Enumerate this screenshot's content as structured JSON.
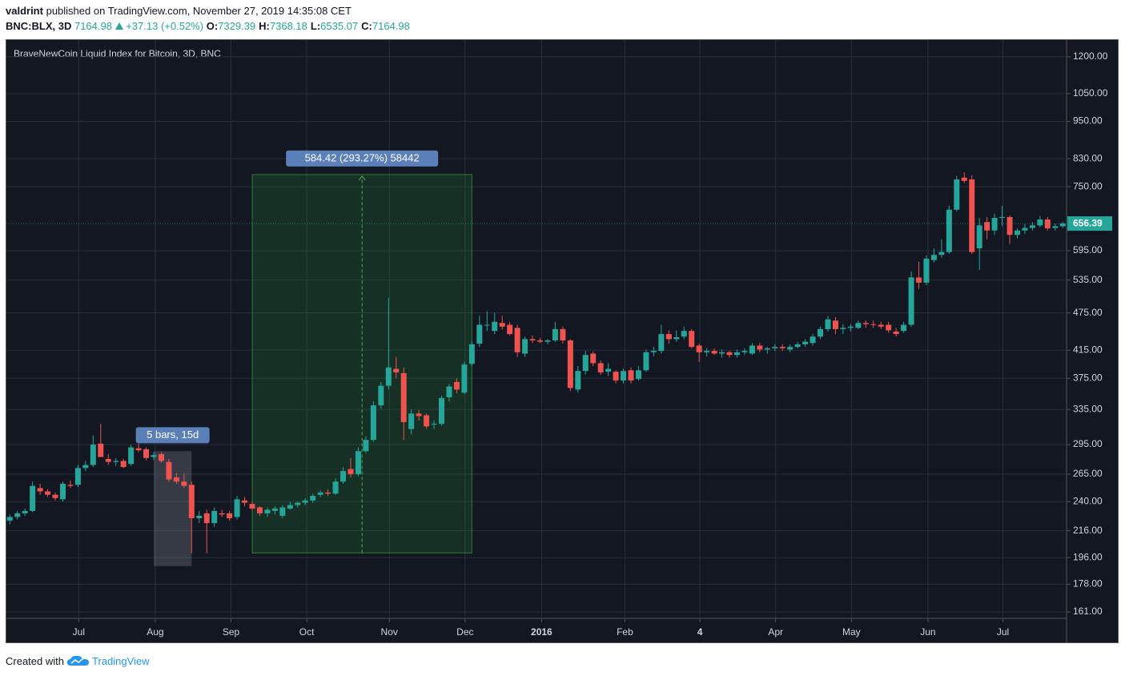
{
  "header": {
    "author": "valdrint",
    "published": "published on TradingView.com, November 27, 2019 14:35:08 CET",
    "symbol": "BNC:BLX, 3D",
    "price": "7164.98",
    "change": "+37.13 (+0.52%)",
    "ohlc": [
      {
        "label": "O:",
        "value": "7329.39"
      },
      {
        "label": "H:",
        "value": "7368.18"
      },
      {
        "label": "L:",
        "value": "6535.07"
      },
      {
        "label": "C:",
        "value": "7164.98"
      }
    ]
  },
  "footer": {
    "text": "Created with",
    "brand": "TradingView"
  },
  "chart_data": {
    "type": "candlestick",
    "title": "BraveNewCoin Liquid Index for Bitcoin, 3D, BNC",
    "log_scale": true,
    "grid": true,
    "up_color": "#26a69a",
    "down_color": "#ef5350",
    "xlim": [
      -0.45,
      139.5
    ],
    "ylim": [
      157.3,
      1275
    ],
    "xticks": [
      {
        "value": 9.1,
        "label": "Jul"
      },
      {
        "value": 19.2,
        "label": "Aug"
      },
      {
        "value": 29.2,
        "label": "Sep"
      },
      {
        "value": 39.2,
        "label": "Oct"
      },
      {
        "value": 50.1,
        "label": "Nov"
      },
      {
        "value": 60.1,
        "label": "Dec"
      },
      {
        "value": 70.2,
        "label": "2016"
      },
      {
        "value": 81.2,
        "label": "Feb"
      },
      {
        "value": 91.1,
        "label": "4"
      },
      {
        "value": 101.1,
        "label": "Apr"
      },
      {
        "value": 111.1,
        "label": "May"
      },
      {
        "value": 121.2,
        "label": "Jun"
      },
      {
        "value": 131.1,
        "label": "Jul"
      }
    ],
    "yticks": [
      {
        "value": 1200,
        "label": "1200.00"
      },
      {
        "value": 1050,
        "label": "1050.00"
      },
      {
        "value": 950,
        "label": "950.00"
      },
      {
        "value": 830,
        "label": "830.00"
      },
      {
        "value": 750,
        "label": "750.00"
      },
      {
        "value": 595,
        "label": "595.00"
      },
      {
        "value": 535,
        "label": "535.00"
      },
      {
        "value": 475,
        "label": "475.00"
      },
      {
        "value": 415,
        "label": "415.00"
      },
      {
        "value": 375,
        "label": "375.00"
      },
      {
        "value": 335,
        "label": "335.00"
      },
      {
        "value": 295,
        "label": "295.00"
      },
      {
        "value": 265,
        "label": "265.00"
      },
      {
        "value": 240,
        "label": "240.00"
      },
      {
        "value": 216,
        "label": "216.00"
      },
      {
        "value": 196,
        "label": "196.00"
      },
      {
        "value": 178,
        "label": "178.00"
      },
      {
        "value": 161,
        "label": "161.00"
      }
    ],
    "last_price": 656.39,
    "open": [
      224,
      227,
      230,
      232,
      252,
      249,
      246,
      242,
      255,
      255,
      271,
      274,
      296,
      280,
      277,
      278,
      275,
      291,
      290,
      282,
      285,
      277,
      262,
      258,
      255,
      226,
      230,
      222,
      230,
      230,
      227,
      241,
      238,
      235,
      230,
      232,
      228,
      234,
      237,
      239,
      241,
      246,
      248,
      247,
      258,
      270,
      265,
      288,
      300,
      340,
      365,
      388,
      382,
      312,
      330,
      328,
      317,
      318,
      350,
      370,
      356,
      395,
      425,
      455,
      445,
      458,
      455,
      450,
      410,
      432,
      430,
      428,
      430,
      448,
      430,
      360,
      385,
      410,
      396,
      384,
      384,
      372,
      386,
      374,
      386,
      412,
      414,
      440,
      432,
      436,
      445,
      422,
      412,
      414,
      410,
      412,
      408,
      412,
      410,
      422,
      416,
      418,
      420,
      416,
      420,
      424,
      426,
      436,
      448,
      462,
      448,
      450,
      450,
      458,
      456,
      455,
      455,
      444,
      445,
      455,
      540,
      530,
      575,
      586,
      592,
      690,
      775,
      770,
      600,
      660,
      640,
      670,
      672,
      630,
      640,
      646,
      652,
      666,
      646,
      650
    ],
    "high": [
      229,
      232,
      234,
      258,
      256,
      251,
      248,
      258,
      259,
      274,
      278,
      305,
      318,
      285,
      281,
      280,
      295,
      296,
      292,
      287,
      287,
      280,
      266,
      266,
      258,
      232,
      233,
      235,
      233,
      232,
      245,
      244,
      240,
      236,
      235,
      236,
      237,
      240,
      240,
      243,
      247,
      250,
      251,
      261,
      272,
      281,
      292,
      304,
      345,
      370,
      502,
      405,
      390,
      335,
      334,
      330,
      322,
      352,
      367,
      375,
      398,
      428,
      470,
      478,
      475,
      470,
      460,
      455,
      436,
      438,
      434,
      432,
      460,
      452,
      432,
      392,
      414,
      413,
      400,
      396,
      386,
      388,
      390,
      392,
      416,
      420,
      455,
      446,
      446,
      452,
      448,
      425,
      418,
      418,
      416,
      414,
      416,
      418,
      426,
      426,
      420,
      424,
      424,
      424,
      428,
      432,
      440,
      452,
      470,
      468,
      456,
      456,
      462,
      462,
      462,
      460,
      460,
      450,
      460,
      552,
      572,
      585,
      600,
      620,
      700,
      780,
      790,
      782,
      670,
      672,
      680,
      700,
      676,
      645,
      655,
      660,
      675,
      672,
      656,
      660
    ],
    "low": [
      221,
      225,
      228,
      231,
      246,
      244,
      241,
      240,
      252,
      253,
      268,
      272,
      282,
      274,
      273,
      271,
      273,
      287,
      279,
      279,
      276,
      258,
      256,
      252,
      199,
      222,
      199,
      219,
      227,
      224,
      225,
      236,
      232,
      228,
      227,
      229,
      226,
      233,
      235,
      237,
      239,
      244,
      245,
      246,
      256,
      262,
      263,
      286,
      298,
      336,
      360,
      375,
      300,
      306,
      322,
      312,
      312,
      316,
      345,
      355,
      354,
      392,
      420,
      445,
      440,
      447,
      438,
      405,
      405,
      426,
      426,
      424,
      428,
      425,
      358,
      356,
      380,
      392,
      380,
      378,
      368,
      368,
      368,
      372,
      384,
      406,
      410,
      425,
      428,
      432,
      418,
      398,
      406,
      408,
      404,
      404,
      404,
      408,
      408,
      412,
      410,
      414,
      414,
      412,
      418,
      420,
      422,
      432,
      444,
      440,
      440,
      444,
      448,
      450,
      450,
      448,
      442,
      436,
      442,
      452,
      518,
      525,
      570,
      580,
      588,
      686,
      760,
      588,
      555,
      620,
      630,
      650,
      610,
      622,
      632,
      640,
      648,
      640,
      640,
      646
    ],
    "close": [
      227,
      230,
      232,
      254,
      249,
      246,
      243,
      256,
      254,
      271,
      274,
      295,
      282,
      277,
      278,
      272,
      292,
      289,
      281,
      284,
      278,
      260,
      258,
      254,
      226,
      228,
      222,
      232,
      229,
      226,
      242,
      239,
      234,
      230,
      233,
      234,
      235,
      237,
      239,
      241,
      245,
      248,
      247,
      258,
      268,
      265,
      288,
      300,
      340,
      365,
      390,
      383,
      320,
      330,
      327,
      315,
      318,
      349,
      364,
      360,
      394,
      424,
      455,
      455,
      460,
      452,
      440,
      412,
      432,
      430,
      428,
      430,
      448,
      430,
      362,
      385,
      408,
      396,
      383,
      388,
      372,
      385,
      372,
      386,
      412,
      414,
      440,
      432,
      435,
      445,
      420,
      412,
      414,
      410,
      412,
      408,
      412,
      414,
      422,
      416,
      418,
      420,
      418,
      420,
      424,
      428,
      436,
      448,
      464,
      448,
      450,
      452,
      458,
      456,
      455,
      452,
      446,
      440,
      455,
      540,
      530,
      578,
      586,
      592,
      690,
      770,
      766,
      592,
      652,
      640,
      670,
      672,
      630,
      640,
      646,
      652,
      666,
      645,
      650,
      656.39
    ],
    "measures": [
      {
        "label": "5 bars, 15d",
        "start": 19,
        "end": 24,
        "low": 190,
        "high": 288
      },
      {
        "label": "584.42 (293.27%) 58442",
        "start": 32,
        "end": 61,
        "low": 199.3,
        "high": 783.7
      }
    ]
  }
}
